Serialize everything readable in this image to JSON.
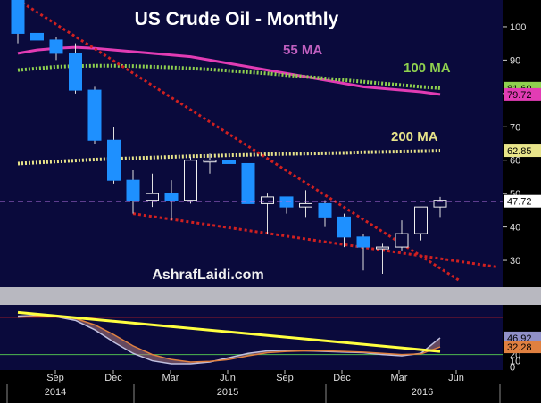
{
  "chart_data": {
    "type": "candlestick",
    "title": "US Crude Oil - Monthly",
    "watermark": "AshrafLaidi.com",
    "ylim": [
      22,
      108
    ],
    "y_ticks": [
      30,
      40,
      50,
      60,
      70,
      80,
      90,
      100
    ],
    "x_month_labels": [
      "Sep",
      "Dec",
      "Mar",
      "Jun",
      "Sep",
      "Dec",
      "Mar",
      "Jun"
    ],
    "x_year_labels": [
      "2014",
      "2015",
      "2016"
    ],
    "candles": [
      {
        "o": 108,
        "h": 108,
        "l": 95,
        "c": 98
      },
      {
        "o": 98,
        "h": 99,
        "l": 94,
        "c": 96
      },
      {
        "o": 96,
        "h": 97,
        "l": 90,
        "c": 92
      },
      {
        "o": 92,
        "h": 95,
        "l": 80,
        "c": 81
      },
      {
        "o": 81,
        "h": 82,
        "l": 65,
        "c": 66
      },
      {
        "o": 66,
        "h": 70,
        "l": 53,
        "c": 54
      },
      {
        "o": 54,
        "h": 57,
        "l": 44,
        "c": 48
      },
      {
        "o": 48,
        "h": 56,
        "l": 46,
        "c": 50
      },
      {
        "o": 50,
        "h": 54,
        "l": 42,
        "c": 48
      },
      {
        "o": 48,
        "h": 61,
        "l": 47,
        "c": 60
      },
      {
        "o": 60,
        "h": 62,
        "l": 56,
        "c": 60
      },
      {
        "o": 60,
        "h": 61,
        "l": 57,
        "c": 59
      },
      {
        "o": 59,
        "h": 59,
        "l": 47,
        "c": 47
      },
      {
        "o": 47,
        "h": 50,
        "l": 38,
        "c": 49
      },
      {
        "o": 49,
        "h": 49,
        "l": 44,
        "c": 46
      },
      {
        "o": 46,
        "h": 51,
        "l": 43,
        "c": 47
      },
      {
        "o": 47,
        "h": 48,
        "l": 40,
        "c": 43
      },
      {
        "o": 43,
        "h": 44,
        "l": 34,
        "c": 37
      },
      {
        "o": 37,
        "h": 38,
        "l": 27,
        "c": 34
      },
      {
        "o": 34,
        "h": 35,
        "l": 26,
        "c": 34
      },
      {
        "o": 34,
        "h": 42,
        "l": 33,
        "c": 38
      },
      {
        "o": 38,
        "h": 46,
        "l": 36,
        "c": 46
      },
      {
        "o": 46,
        "h": 49,
        "l": 43,
        "c": 48
      }
    ],
    "moving_averages": [
      {
        "name": "55 MA",
        "color": "#e23cb4",
        "last_value": "79.72",
        "values": [
          92,
          93,
          93.5,
          93.8,
          93.5,
          93,
          92.5,
          92,
          91.5,
          91,
          90,
          89,
          88,
          87,
          86,
          85,
          84,
          83,
          82,
          81.5,
          81,
          80.5,
          79.72
        ]
      },
      {
        "name": "100 MA",
        "color": "#8fd14f",
        "last_value": "81.60",
        "values": [
          87,
          87.5,
          88,
          88.2,
          88.3,
          88.3,
          88.2,
          88,
          87.8,
          87.5,
          87.2,
          86.8,
          86.4,
          86,
          85.5,
          85,
          84.5,
          84,
          83.5,
          83,
          82.5,
          82,
          81.6
        ]
      },
      {
        "name": "200 MA",
        "color": "#e8e48a",
        "last_value": "62.85",
        "values": [
          59,
          59.3,
          59.6,
          59.9,
          60.2,
          60.4,
          60.6,
          60.8,
          61,
          61.2,
          61.3,
          61.5,
          61.6,
          61.8,
          61.9,
          62,
          62.1,
          62.2,
          62.4,
          62.5,
          62.6,
          62.7,
          62.85
        ]
      }
    ],
    "current_price": {
      "value": 47.72,
      "label": "47.72",
      "color": "#ffffff"
    },
    "trendlines": [
      {
        "color": "#d02020",
        "points": [
          [
            0,
            108
          ],
          [
            23,
            24
          ]
        ]
      },
      {
        "color": "#d02020",
        "points": [
          [
            6,
            44
          ],
          [
            25,
            28
          ]
        ]
      }
    ],
    "right_axis_labels": [
      {
        "value": 81.6,
        "label": "81.60",
        "color": "#8fd14f"
      },
      {
        "value": 79.72,
        "label": "79.72",
        "color": "#e23cb4"
      },
      {
        "value": 62.85,
        "label": "62.85",
        "color": "#e8e48a"
      },
      {
        "value": 47.72,
        "label": "47.72",
        "color": "#ffffff"
      }
    ],
    "oscillator": {
      "ylim": [
        -5,
        100
      ],
      "y_ticks": [
        0,
        10,
        20,
        30,
        40
      ],
      "levels": [
        {
          "value": 80,
          "color": "#c02020"
        },
        {
          "value": 20,
          "color": "#4fb84f"
        }
      ],
      "k_values": [
        82,
        83,
        81,
        75,
        60,
        40,
        22,
        10,
        5,
        5,
        8,
        15,
        22,
        26,
        27,
        26,
        25,
        24,
        23,
        20,
        18,
        22,
        46.92
      ],
      "d_values": [
        80,
        82,
        81,
        78,
        68,
        52,
        34,
        20,
        12,
        8,
        9,
        12,
        18,
        23,
        25,
        26,
        26,
        25,
        24,
        22,
        20,
        21,
        32.28
      ],
      "trendline": {
        "color": "#ffff40",
        "points": [
          [
            0,
            88
          ],
          [
            22,
            25
          ]
        ]
      },
      "labels": [
        {
          "value": 46.92,
          "label": "46.92",
          "color": "#9090c8"
        },
        {
          "value": 32.28,
          "label": "32.28",
          "color": "#e08040"
        }
      ]
    }
  }
}
